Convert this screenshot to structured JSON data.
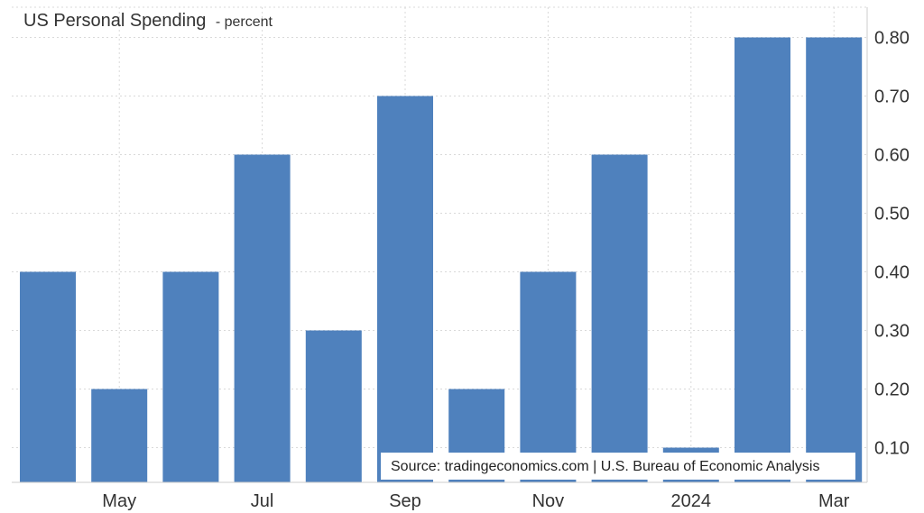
{
  "chart_data": {
    "type": "bar",
    "title": "US Personal Spending",
    "subtitle": "- percent",
    "categories": [
      "2023-04",
      "2023-05",
      "2023-06",
      "2023-07",
      "2023-08",
      "2023-09",
      "2023-10",
      "2023-11",
      "2023-12",
      "2024-01",
      "2024-02",
      "2024-03"
    ],
    "values": [
      0.4,
      0.2,
      0.4,
      0.6,
      0.3,
      0.7,
      0.2,
      0.4,
      0.6,
      0.1,
      0.8,
      0.8
    ],
    "x_tick_labels": [
      {
        "category": "2023-05",
        "label": "May"
      },
      {
        "category": "2023-07",
        "label": "Jul"
      },
      {
        "category": "2023-09",
        "label": "Sep"
      },
      {
        "category": "2023-11",
        "label": "Nov"
      },
      {
        "category": "2024-01",
        "label": "2024"
      },
      {
        "category": "2024-03",
        "label": "Mar"
      }
    ],
    "y_ticks": [
      "0.10",
      "0.20",
      "0.30",
      "0.40",
      "0.50",
      "0.60",
      "0.70",
      "0.80"
    ],
    "ylim": [
      0.04,
      0.86
    ],
    "y_axis_side": "right",
    "grid": true,
    "bar_color": "#4f81bd",
    "source": "Source: tradingeconomics.com | U.S. Bureau of Economic Analysis"
  }
}
